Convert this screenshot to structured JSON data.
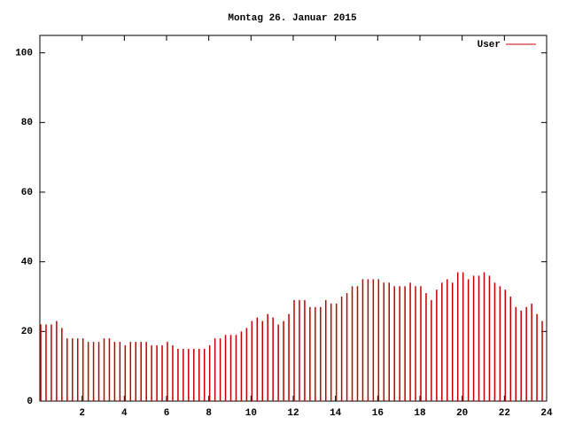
{
  "chart_data": {
    "type": "impulse",
    "title": "Montag 26. Januar 2015",
    "series": [
      {
        "name": "User",
        "color": "#c00000",
        "values": [
          22,
          22,
          22,
          23,
          21,
          18,
          18,
          18,
          18,
          17,
          17,
          17,
          18,
          18,
          17,
          17,
          16,
          17,
          17,
          17,
          17,
          16,
          16,
          16,
          17,
          16,
          15,
          15,
          15,
          15,
          15,
          15,
          16,
          18,
          18,
          19,
          19,
          19,
          20,
          21,
          23,
          24,
          23,
          25,
          24,
          22,
          23,
          25,
          29,
          29,
          29,
          27,
          27,
          27,
          29,
          28,
          28,
          30,
          31,
          33,
          33,
          35,
          35,
          35,
          35,
          34,
          34,
          33,
          33,
          33,
          34,
          33,
          33,
          31,
          29,
          32,
          34,
          35,
          34,
          37,
          37,
          35,
          36,
          36,
          37,
          36,
          34,
          33,
          32,
          30,
          27,
          26,
          27,
          28,
          25,
          23
        ]
      }
    ],
    "x": [
      0,
      0.25,
      0.5,
      0.75,
      1,
      1.25,
      1.5,
      1.75,
      2,
      2.25,
      2.5,
      2.75,
      3,
      3.25,
      3.5,
      3.75,
      4,
      4.25,
      4.5,
      4.75,
      5,
      5.25,
      5.5,
      5.75,
      6,
      6.25,
      6.5,
      6.75,
      7,
      7.25,
      7.5,
      7.75,
      8,
      8.25,
      8.5,
      8.75,
      9,
      9.25,
      9.5,
      9.75,
      10,
      10.25,
      10.5,
      10.75,
      11,
      11.25,
      11.5,
      11.75,
      12,
      12.25,
      12.5,
      12.75,
      13,
      13.25,
      13.5,
      13.75,
      14,
      14.25,
      14.5,
      14.75,
      15,
      15.25,
      15.5,
      15.75,
      16,
      16.25,
      16.5,
      16.75,
      17,
      17.25,
      17.5,
      17.75,
      18,
      18.25,
      18.5,
      18.75,
      19,
      19.25,
      19.5,
      19.75,
      20,
      20.25,
      20.5,
      20.75,
      21,
      21.25,
      21.5,
      21.75,
      22,
      22.25,
      22.5,
      22.75,
      23,
      23.25,
      23.5,
      23.75
    ],
    "xlim": [
      0,
      24
    ],
    "xticks": [
      2,
      4,
      6,
      8,
      10,
      12,
      14,
      16,
      18,
      20,
      22,
      24
    ],
    "ylim": [
      0,
      105
    ],
    "yticks": [
      0,
      20,
      40,
      60,
      80,
      100
    ],
    "legend": "top-right"
  }
}
